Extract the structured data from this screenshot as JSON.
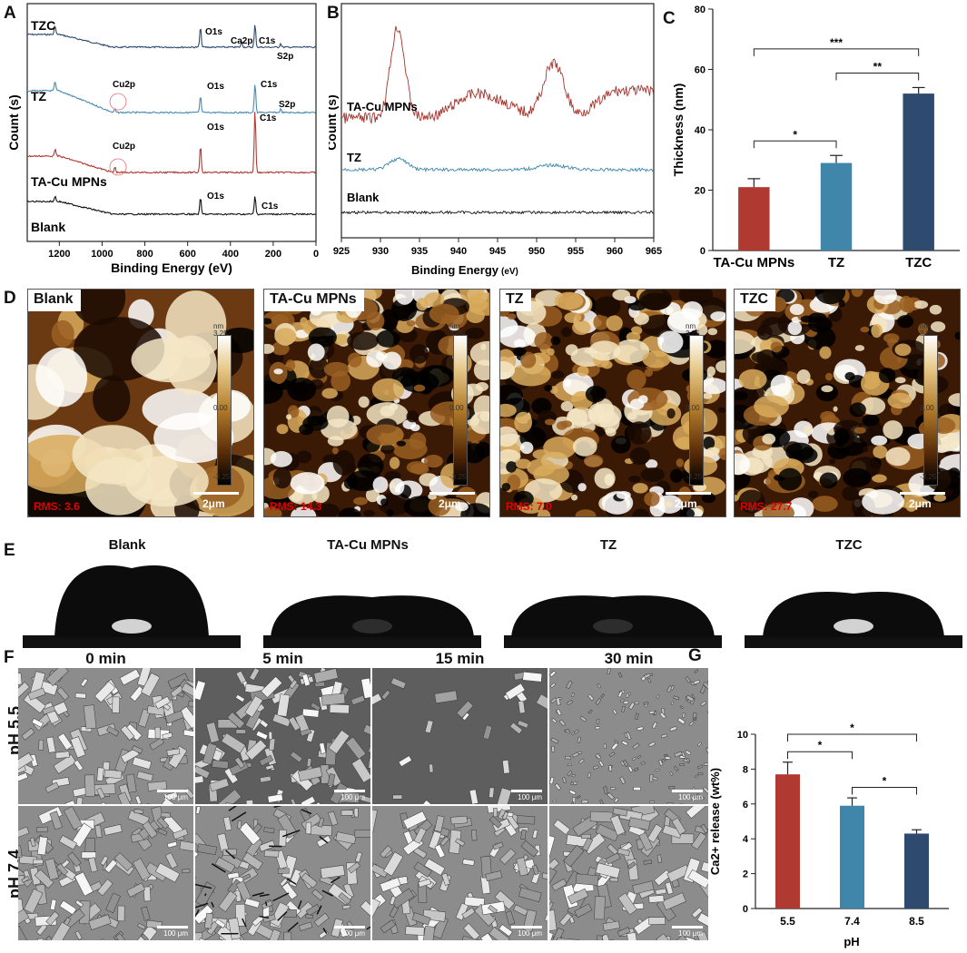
{
  "panel_labels": {
    "a": "A",
    "b": "B",
    "c": "C",
    "d": "D",
    "e": "E",
    "f": "F",
    "g": "G"
  },
  "panelA": {
    "xlabel": "Binding Energy (eV)",
    "ylabel": "Count (s)",
    "xticks": [
      "1200",
      "1000",
      "800",
      "600",
      "400",
      "200",
      "0"
    ],
    "samples": [
      "TZC",
      "TZ",
      "TA-Cu MPNs",
      "Blank"
    ],
    "peaks": {
      "o1s": "O1s",
      "ca2p": "Ca2p",
      "c1s": "C1s",
      "s2p": "S2p",
      "cu2p": "Cu2p"
    },
    "colors": {
      "TZC": "#2e4a6e",
      "TZ": "#4a8cb0",
      "TA-Cu MPNs": "#b03a32",
      "Blank": "#111111"
    }
  },
  "panelB": {
    "xlabel": "Binding Energy",
    "xunit": "(eV)",
    "ylabel": "Count (s)",
    "xticks": [
      "925",
      "930",
      "935",
      "940",
      "945",
      "950",
      "955",
      "960",
      "965"
    ],
    "samples": [
      "TA-Cu MPNs",
      "TZ",
      "Blank"
    ]
  },
  "chart_data": [
    {
      "type": "bar",
      "panel": "C",
      "categories": [
        "TA-Cu MPNs",
        "TZ",
        "TZC"
      ],
      "values": [
        21,
        29,
        52
      ],
      "errors": [
        2.8,
        2.5,
        2.0
      ],
      "colors": [
        "#b03a32",
        "#3f86aa",
        "#2e4a6e"
      ],
      "ylabel": "Thickness (nm)",
      "ylim": [
        0,
        80
      ],
      "yticks": [
        "0",
        "20",
        "40",
        "60",
        "80"
      ],
      "significance": [
        {
          "pair": [
            0,
            1
          ],
          "label": "*"
        },
        {
          "pair": [
            0,
            2
          ],
          "label": "***"
        },
        {
          "pair": [
            1,
            2
          ],
          "label": "**"
        }
      ]
    },
    {
      "type": "bar",
      "panel": "G",
      "categories": [
        "5.5",
        "7.4",
        "8.5"
      ],
      "values": [
        7.7,
        5.9,
        4.3
      ],
      "errors": [
        0.7,
        0.45,
        0.22
      ],
      "colors": [
        "#b03a32",
        "#3f86aa",
        "#2e4a6e"
      ],
      "xlabel": "pH",
      "ylabel": "Ca2+ release (wt%)",
      "ylim": [
        0,
        10
      ],
      "yticks": [
        "0",
        "2",
        "4",
        "6",
        "8",
        "10"
      ],
      "significance": [
        {
          "pair": [
            0,
            1
          ],
          "label": "*"
        },
        {
          "pair": [
            0,
            2
          ],
          "label": "*"
        },
        {
          "pair": [
            1,
            2
          ],
          "label": "*"
        }
      ]
    }
  ],
  "panelD": {
    "images": [
      {
        "title": "Blank",
        "rms": "RMS:  3.6"
      },
      {
        "title": "TA-Cu MPNs",
        "rms": "RMS:  14.3"
      },
      {
        "title": "TZ",
        "rms": "RMS:  7.0"
      },
      {
        "title": "TZC",
        "rms": "RMS:  27.7"
      }
    ],
    "colorbar": {
      "unit": "nm",
      "max": "3.25",
      "mid": "0.00",
      "min": "-3.25"
    },
    "scale": "2μm"
  },
  "panelE": {
    "titles": [
      "Blank",
      "TA-Cu MPNs",
      "TZ",
      "TZC"
    ]
  },
  "panelF": {
    "times": [
      "0 min",
      "5 min",
      "15 min",
      "30 min"
    ],
    "rows": [
      "pH 5.5",
      "pH 7.4"
    ],
    "scale": "100 μm"
  }
}
